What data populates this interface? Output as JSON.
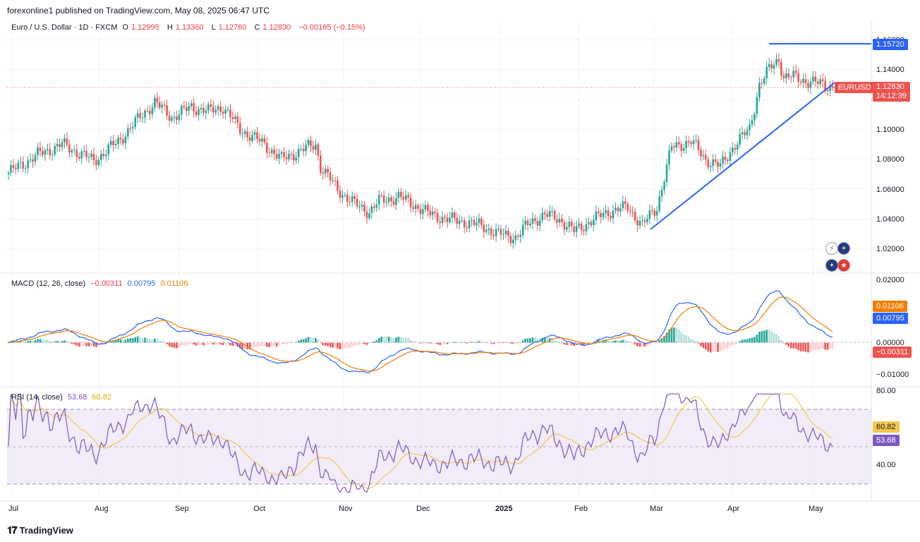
{
  "header": {
    "publisher": "forexonline1 published on TradingView.com, May 08, 2025 06:47 UTC"
  },
  "brand": {
    "name": "TradingView"
  },
  "colors": {
    "up": "#26a69a",
    "down": "#ef5350",
    "trendline": "#2962ff",
    "macd": "#2962ff",
    "signal": "#f57c00",
    "rsi": "#7e57c2",
    "rsi_ma": "#f2c94c"
  },
  "main": {
    "symbol_line": "Euro / U.S. Dollar · 1D · FXCM",
    "o_label": "O",
    "o": "1.12995",
    "h_label": "H",
    "h": "1.13360",
    "l_label": "L",
    "l": "1.12760",
    "c_label": "C",
    "c": "1.12830",
    "change": "−0.00165 (−0.15%)",
    "yticks": [
      "1.16000",
      "1.14000",
      "1.10000",
      "1.08000",
      "1.06000",
      "1.04000",
      "1.02000"
    ],
    "level_label": "1.15720",
    "ticker_label": "EURUSD",
    "price_label": "1.12830",
    "countdown": "14:12:39"
  },
  "macd": {
    "title": "MACD (12, 26, close)",
    "hist": "−0.00311",
    "macd": "0.00795",
    "signal": "0.01106",
    "yticks": [
      "0.02000",
      "0.00000",
      "−0.01000"
    ],
    "signal_label": "0.01106",
    "macd_label": "0.00795",
    "hist_label": "−0.00311"
  },
  "rsi": {
    "title": "RSI (14, close)",
    "value": "53.68",
    "ma": "60.82",
    "yticks": [
      "80.00",
      "40.00"
    ],
    "ma_label": "60.82",
    "value_label": "53.68"
  },
  "xaxis": {
    "labels": [
      "Jul",
      "Aug",
      "Sep",
      "Oct",
      "Nov",
      "Dec",
      "2025",
      "Feb",
      "Mar",
      "Apr",
      "May"
    ]
  },
  "chart_data": {
    "type": "line",
    "title": "Euro / U.S. Dollar · 1D · FXCM",
    "x": [
      "Jul",
      "Aug",
      "Sep",
      "Oct",
      "Nov",
      "Dec",
      "2025",
      "Feb",
      "Mar",
      "Apr",
      "May"
    ],
    "series": [
      {
        "name": "",
        "values": [
          1.073,
          1.085,
          1.115,
          1.112,
          1.085,
          1.05,
          1.035,
          1.038,
          1.045,
          1.085,
          1.13
        ]
      }
    ],
    "ylim": [
      1.015,
      1.165
    ],
    "resistance_level": 1.1572,
    "last_close": 1.1283,
    "macd": {
      "macd": 0.00795,
      "signal": 0.01106,
      "histogram": -0.00311,
      "ylim": [
        -0.012,
        0.021
      ]
    },
    "rsi": {
      "value": 53.68,
      "ma": 60.82,
      "bands": [
        30,
        70
      ],
      "ylim": [
        25,
        80
      ]
    }
  }
}
